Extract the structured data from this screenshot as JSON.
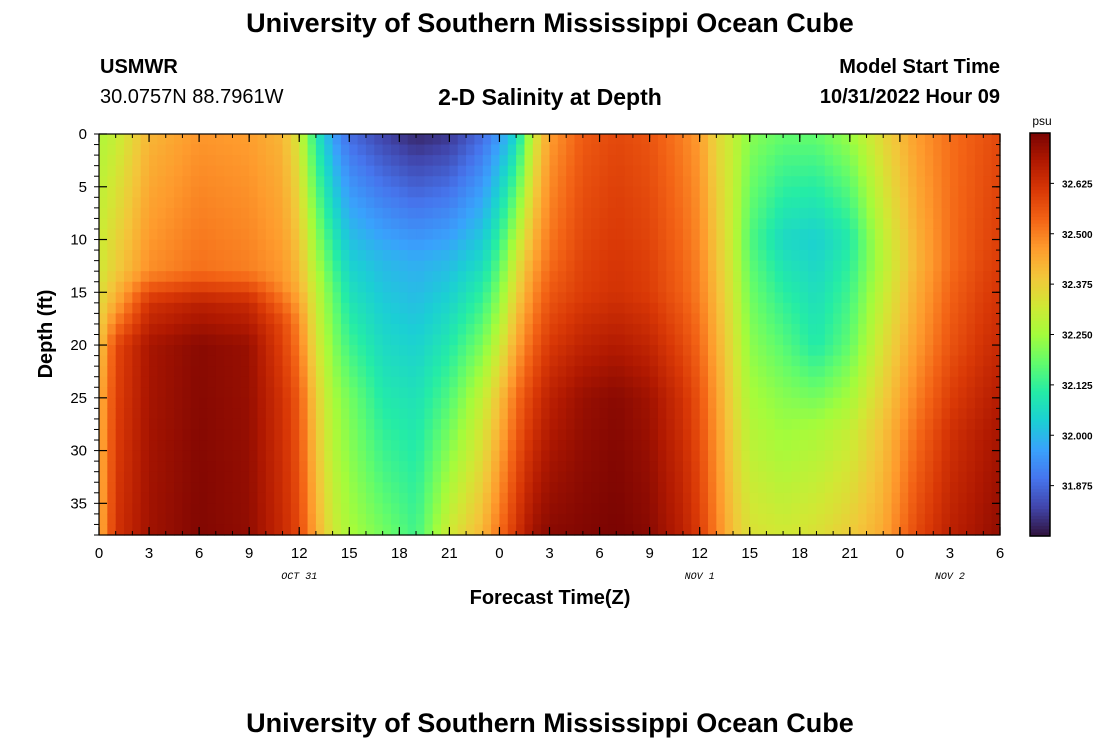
{
  "header": {
    "title": "University of Southern Mississippi Ocean Cube",
    "station": "USMWR",
    "coords": "30.0757N  88.7961W",
    "plot_title": "2-D Salinity at Depth",
    "model_start_label": "Model Start Time",
    "model_start_value": "10/31/2022 Hour 09"
  },
  "footer": {
    "title": "University of Southern Mississippi Ocean Cube"
  },
  "chart_data": {
    "type": "heatmap",
    "title": "2-D Salinity at Depth",
    "xlabel": "Forecast Time(Z)",
    "ylabel": "Depth (ft)",
    "x_ticks": [
      "0",
      "3",
      "6",
      "9",
      "12",
      "15",
      "18",
      "21",
      "0",
      "3",
      "6",
      "9",
      "12",
      "15",
      "18",
      "21",
      "0",
      "3",
      "6"
    ],
    "date_labels": [
      {
        "label": "OCT 31",
        "at_hour": 12
      },
      {
        "label": "NOV 1",
        "at_hour": 36
      },
      {
        "label": "NOV 2",
        "at_hour": 51
      }
    ],
    "x_range_hours": [
      0,
      54
    ],
    "y_ticks": [
      0,
      5,
      10,
      15,
      20,
      25,
      30,
      35
    ],
    "y_range_ft": [
      0,
      38
    ],
    "colorbar": {
      "unit": "psu",
      "ticks": [
        "32.625",
        "32.500",
        "32.375",
        "32.250",
        "32.125",
        "32.000",
        "31.875"
      ],
      "range": [
        31.75,
        32.75
      ],
      "colors": [
        "#30123b",
        "#4145ab",
        "#4675ed",
        "#39a2fc",
        "#1bcfd4",
        "#24eca6",
        "#61fc6c",
        "#a4fc3b",
        "#d1e834",
        "#f3c63a",
        "#fe9b2d",
        "#f36315",
        "#d93806",
        "#b11901",
        "#7a0402"
      ]
    },
    "columns": [
      {
        "hour": 0,
        "values": [
          [
            0,
            32.27
          ],
          [
            13,
            32.32
          ],
          [
            17,
            32.36
          ],
          [
            25,
            32.42
          ],
          [
            38,
            32.42
          ]
        ]
      },
      {
        "hour": 1,
        "values": [
          [
            0,
            32.3
          ],
          [
            13,
            32.38
          ],
          [
            16,
            32.44
          ],
          [
            20,
            32.58
          ],
          [
            38,
            32.62
          ]
        ]
      },
      {
        "hour": 3,
        "values": [
          [
            0,
            32.42
          ],
          [
            13,
            32.48
          ],
          [
            16,
            32.62
          ],
          [
            20,
            32.69
          ],
          [
            38,
            32.7
          ]
        ]
      },
      {
        "hour": 6,
        "values": [
          [
            0,
            32.47
          ],
          [
            13,
            32.52
          ],
          [
            16,
            32.66
          ],
          [
            20,
            32.73
          ],
          [
            38,
            32.74
          ]
        ]
      },
      {
        "hour": 9,
        "values": [
          [
            0,
            32.46
          ],
          [
            13,
            32.5
          ],
          [
            16,
            32.64
          ],
          [
            20,
            32.71
          ],
          [
            38,
            32.72
          ]
        ]
      },
      {
        "hour": 11,
        "values": [
          [
            0,
            32.42
          ],
          [
            14,
            32.47
          ],
          [
            18,
            32.58
          ],
          [
            25,
            32.62
          ],
          [
            38,
            32.64
          ]
        ]
      },
      {
        "hour": 12,
        "values": [
          [
            0,
            32.32
          ],
          [
            14,
            32.42
          ],
          [
            18,
            32.49
          ],
          [
            25,
            32.55
          ],
          [
            38,
            32.58
          ]
        ]
      },
      {
        "hour": 13,
        "values": [
          [
            0,
            32.1
          ],
          [
            15,
            32.3
          ],
          [
            25,
            32.38
          ],
          [
            38,
            32.44
          ]
        ]
      },
      {
        "hour": 14,
        "values": [
          [
            0,
            31.96
          ],
          [
            15,
            32.18
          ],
          [
            25,
            32.26
          ],
          [
            38,
            32.32
          ]
        ]
      },
      {
        "hour": 15,
        "values": [
          [
            0,
            31.88
          ],
          [
            12,
            32.04
          ],
          [
            25,
            32.2
          ],
          [
            38,
            32.26
          ]
        ]
      },
      {
        "hour": 17,
        "values": [
          [
            0,
            31.82
          ],
          [
            12,
            32.0
          ],
          [
            25,
            32.1
          ],
          [
            32,
            32.15
          ],
          [
            38,
            32.2
          ]
        ]
      },
      {
        "hour": 19,
        "values": [
          [
            0,
            31.78
          ],
          [
            12,
            31.98
          ],
          [
            25,
            32.08
          ],
          [
            38,
            32.14
          ]
        ]
      },
      {
        "hour": 21,
        "values": [
          [
            0,
            31.8
          ],
          [
            12,
            32.0
          ],
          [
            25,
            32.16
          ],
          [
            38,
            32.32
          ]
        ]
      },
      {
        "hour": 23,
        "values": [
          [
            0,
            31.88
          ],
          [
            12,
            32.06
          ],
          [
            25,
            32.3
          ],
          [
            38,
            32.42
          ]
        ]
      },
      {
        "hour": 24,
        "values": [
          [
            0,
            31.95
          ],
          [
            12,
            32.16
          ],
          [
            25,
            32.4
          ],
          [
            38,
            32.52
          ]
        ]
      },
      {
        "hour": 25,
        "values": [
          [
            0,
            32.05
          ],
          [
            12,
            32.32
          ],
          [
            25,
            32.52
          ],
          [
            38,
            32.62
          ]
        ]
      },
      {
        "hour": 26,
        "values": [
          [
            0,
            32.3
          ],
          [
            10,
            32.42
          ],
          [
            25,
            32.6
          ],
          [
            38,
            32.7
          ]
        ]
      },
      {
        "hour": 27,
        "values": [
          [
            0,
            32.46
          ],
          [
            12,
            32.52
          ],
          [
            25,
            32.66
          ],
          [
            38,
            32.73
          ]
        ]
      },
      {
        "hour": 29,
        "values": [
          [
            0,
            32.55
          ],
          [
            15,
            32.6
          ],
          [
            25,
            32.71
          ],
          [
            38,
            32.74
          ]
        ]
      },
      {
        "hour": 31,
        "values": [
          [
            0,
            32.58
          ],
          [
            15,
            32.62
          ],
          [
            25,
            32.73
          ],
          [
            38,
            32.75
          ]
        ]
      },
      {
        "hour": 33,
        "values": [
          [
            0,
            32.56
          ],
          [
            15,
            32.6
          ],
          [
            25,
            32.7
          ],
          [
            38,
            32.73
          ]
        ]
      },
      {
        "hour": 35,
        "values": [
          [
            0,
            32.5
          ],
          [
            15,
            32.54
          ],
          [
            25,
            32.62
          ],
          [
            38,
            32.66
          ]
        ]
      },
      {
        "hour": 36,
        "values": [
          [
            0,
            32.46
          ],
          [
            15,
            32.5
          ],
          [
            25,
            32.56
          ],
          [
            38,
            32.6
          ]
        ]
      },
      {
        "hour": 37,
        "values": [
          [
            0,
            32.36
          ],
          [
            12,
            32.4
          ],
          [
            25,
            32.46
          ],
          [
            38,
            32.5
          ]
        ]
      },
      {
        "hour": 38,
        "values": [
          [
            0,
            32.3
          ],
          [
            10,
            32.3
          ],
          [
            25,
            32.36
          ],
          [
            38,
            32.4
          ]
        ]
      },
      {
        "hour": 39,
        "values": [
          [
            0,
            32.22
          ],
          [
            10,
            32.16
          ],
          [
            25,
            32.26
          ],
          [
            38,
            32.34
          ]
        ]
      },
      {
        "hour": 41,
        "values": [
          [
            0,
            32.18
          ],
          [
            10,
            32.06
          ],
          [
            25,
            32.22
          ],
          [
            38,
            32.32
          ]
        ]
      },
      {
        "hour": 43,
        "values": [
          [
            0,
            32.18
          ],
          [
            10,
            32.04
          ],
          [
            20,
            32.1
          ],
          [
            28,
            32.26
          ],
          [
            38,
            32.34
          ]
        ]
      },
      {
        "hour": 45,
        "values": [
          [
            0,
            32.24
          ],
          [
            10,
            32.1
          ],
          [
            20,
            32.18
          ],
          [
            28,
            32.3
          ],
          [
            38,
            32.38
          ]
        ]
      },
      {
        "hour": 47,
        "values": [
          [
            0,
            32.36
          ],
          [
            12,
            32.28
          ],
          [
            20,
            32.34
          ],
          [
            28,
            32.4
          ],
          [
            38,
            32.44
          ]
        ]
      },
      {
        "hour": 49,
        "values": [
          [
            0,
            32.46
          ],
          [
            12,
            32.42
          ],
          [
            20,
            32.46
          ],
          [
            28,
            32.52
          ],
          [
            38,
            32.58
          ]
        ]
      },
      {
        "hour": 51,
        "values": [
          [
            0,
            32.52
          ],
          [
            12,
            32.52
          ],
          [
            20,
            32.56
          ],
          [
            28,
            32.62
          ],
          [
            38,
            32.66
          ]
        ]
      },
      {
        "hour": 53,
        "values": [
          [
            0,
            32.56
          ],
          [
            12,
            32.58
          ],
          [
            20,
            32.62
          ],
          [
            28,
            32.67
          ],
          [
            38,
            32.7
          ]
        ]
      },
      {
        "hour": 54,
        "values": [
          [
            0,
            32.58
          ],
          [
            12,
            32.6
          ],
          [
            20,
            32.64
          ],
          [
            28,
            32.69
          ],
          [
            38,
            32.72
          ]
        ]
      }
    ]
  }
}
